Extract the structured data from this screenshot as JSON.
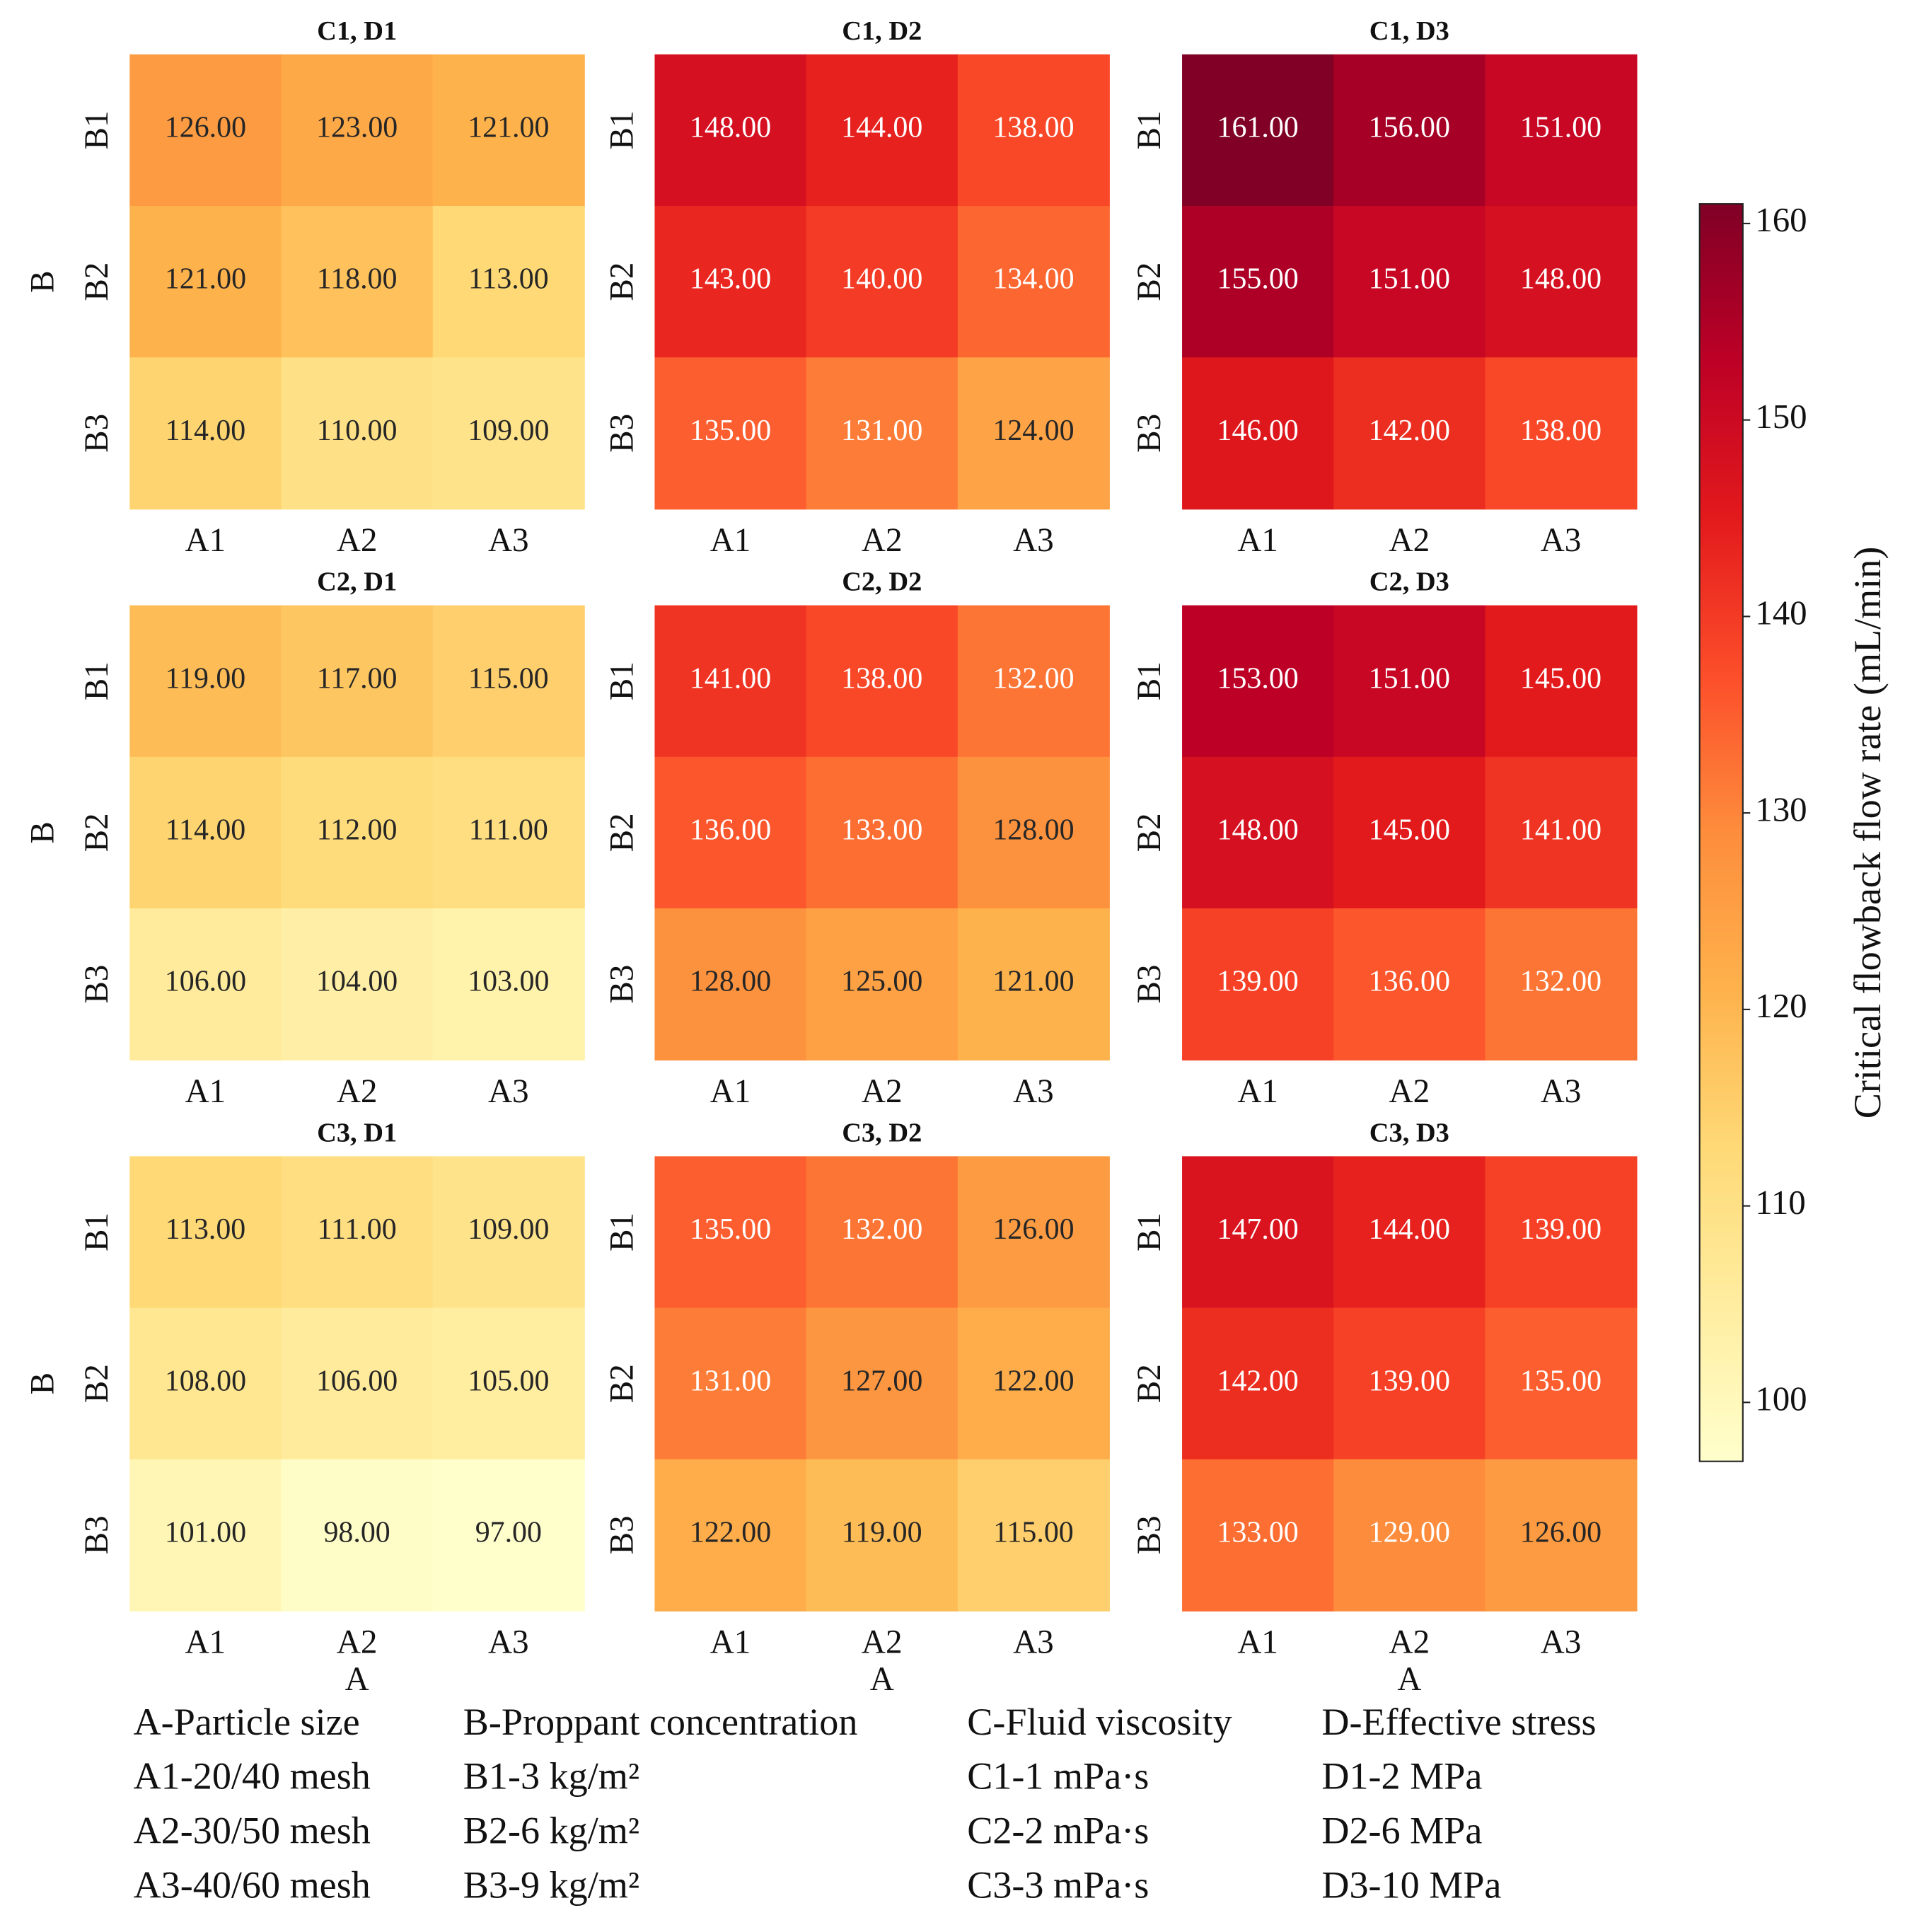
{
  "chart_data": [
    {
      "type": "heatmap",
      "title": "C1, D1",
      "ylabel": "B",
      "x_categories": [
        "A1",
        "A2",
        "A3"
      ],
      "y_categories": [
        "B1",
        "B2",
        "B3"
      ],
      "values": [
        [
          126,
          123,
          121
        ],
        [
          121,
          118,
          113
        ],
        [
          114,
          110,
          109
        ]
      ],
      "value_labels": [
        [
          "126.00",
          "123.00",
          "121.00"
        ],
        [
          "121.00",
          "118.00",
          "113.00"
        ],
        [
          "114.00",
          "110.00",
          "109.00"
        ]
      ]
    },
    {
      "type": "heatmap",
      "title": "C1, D2",
      "x_categories": [
        "A1",
        "A2",
        "A3"
      ],
      "y_categories": [
        "B1",
        "B2",
        "B3"
      ],
      "values": [
        [
          148,
          144,
          138
        ],
        [
          143,
          140,
          134
        ],
        [
          135,
          131,
          124
        ]
      ],
      "value_labels": [
        [
          "148.00",
          "144.00",
          "138.00"
        ],
        [
          "143.00",
          "140.00",
          "134.00"
        ],
        [
          "135.00",
          "131.00",
          "124.00"
        ]
      ]
    },
    {
      "type": "heatmap",
      "title": "C1, D3",
      "x_categories": [
        "A1",
        "A2",
        "A3"
      ],
      "y_categories": [
        "B1",
        "B2",
        "B3"
      ],
      "values": [
        [
          161,
          156,
          151
        ],
        [
          155,
          151,
          148
        ],
        [
          146,
          142,
          138
        ]
      ],
      "value_labels": [
        [
          "161.00",
          "156.00",
          "151.00"
        ],
        [
          "155.00",
          "151.00",
          "148.00"
        ],
        [
          "146.00",
          "142.00",
          "138.00"
        ]
      ]
    },
    {
      "type": "heatmap",
      "title": "C2, D1",
      "ylabel": "B",
      "x_categories": [
        "A1",
        "A2",
        "A3"
      ],
      "y_categories": [
        "B1",
        "B2",
        "B3"
      ],
      "values": [
        [
          119,
          117,
          115
        ],
        [
          114,
          112,
          111
        ],
        [
          106,
          104,
          103
        ]
      ],
      "value_labels": [
        [
          "119.00",
          "117.00",
          "115.00"
        ],
        [
          "114.00",
          "112.00",
          "111.00"
        ],
        [
          "106.00",
          "104.00",
          "103.00"
        ]
      ]
    },
    {
      "type": "heatmap",
      "title": "C2, D2",
      "x_categories": [
        "A1",
        "A2",
        "A3"
      ],
      "y_categories": [
        "B1",
        "B2",
        "B3"
      ],
      "values": [
        [
          141,
          138,
          132
        ],
        [
          136,
          133,
          128
        ],
        [
          128,
          125,
          121
        ]
      ],
      "value_labels": [
        [
          "141.00",
          "138.00",
          "132.00"
        ],
        [
          "136.00",
          "133.00",
          "128.00"
        ],
        [
          "128.00",
          "125.00",
          "121.00"
        ]
      ]
    },
    {
      "type": "heatmap",
      "title": "C2, D3",
      "x_categories": [
        "A1",
        "A2",
        "A3"
      ],
      "y_categories": [
        "B1",
        "B2",
        "B3"
      ],
      "values": [
        [
          153,
          151,
          145
        ],
        [
          148,
          145,
          141
        ],
        [
          139,
          136,
          132
        ]
      ],
      "value_labels": [
        [
          "153.00",
          "151.00",
          "145.00"
        ],
        [
          "148.00",
          "145.00",
          "141.00"
        ],
        [
          "139.00",
          "136.00",
          "132.00"
        ]
      ]
    },
    {
      "type": "heatmap",
      "title": "C3, D1",
      "ylabel": "B",
      "xlabel": "A",
      "x_categories": [
        "A1",
        "A2",
        "A3"
      ],
      "y_categories": [
        "B1",
        "B2",
        "B3"
      ],
      "values": [
        [
          113,
          111,
          109
        ],
        [
          108,
          106,
          105
        ],
        [
          101,
          98,
          97
        ]
      ],
      "value_labels": [
        [
          "113.00",
          "111.00",
          "109.00"
        ],
        [
          "108.00",
          "106.00",
          "105.00"
        ],
        [
          "101.00",
          "98.00",
          "97.00"
        ]
      ]
    },
    {
      "type": "heatmap",
      "title": "C3, D2",
      "xlabel": "A",
      "x_categories": [
        "A1",
        "A2",
        "A3"
      ],
      "y_categories": [
        "B1",
        "B2",
        "B3"
      ],
      "values": [
        [
          135,
          132,
          126
        ],
        [
          131,
          127,
          122
        ],
        [
          122,
          119,
          115
        ]
      ],
      "value_labels": [
        [
          "135.00",
          "132.00",
          "126.00"
        ],
        [
          "131.00",
          "127.00",
          "122.00"
        ],
        [
          "122.00",
          "119.00",
          "115.00"
        ]
      ]
    },
    {
      "type": "heatmap",
      "title": "C3, D3",
      "xlabel": "A",
      "x_categories": [
        "A1",
        "A2",
        "A3"
      ],
      "y_categories": [
        "B1",
        "B2",
        "B3"
      ],
      "values": [
        [
          147,
          144,
          139
        ],
        [
          142,
          139,
          135
        ],
        [
          133,
          129,
          126
        ]
      ],
      "value_labels": [
        [
          "147.00",
          "144.00",
          "139.00"
        ],
        [
          "142.00",
          "139.00",
          "135.00"
        ],
        [
          "133.00",
          "129.00",
          "126.00"
        ]
      ]
    }
  ],
  "colorbar": {
    "label": "Critical flowback flow rate (mL/min)",
    "lim": [
      97,
      161
    ],
    "ticks": [
      100,
      110,
      120,
      130,
      140,
      150,
      160
    ],
    "colors": [
      "#ffffcc",
      "#ffeda0",
      "#fed976",
      "#feb24c",
      "#fd8d3c",
      "#fc4e2a",
      "#e31a1c",
      "#bd0026",
      "#800026"
    ]
  },
  "legend_text": [
    [
      "A-Particle size",
      "A1-20/40 mesh",
      "A2-30/50 mesh",
      "A3-40/60 mesh"
    ],
    [
      "B-Proppant concentration",
      "B1-3 kg/m²",
      "B2-6 kg/m²",
      "B3-9 kg/m²"
    ],
    [
      "C-Fluid viscosity",
      "C1-1 mPa·s",
      "C2-2 mPa·s",
      "C3-3 mPa·s"
    ],
    [
      "D-Effective stress",
      "D1-2 MPa",
      "D2-6 MPa",
      "D3-10 MPa"
    ]
  ]
}
